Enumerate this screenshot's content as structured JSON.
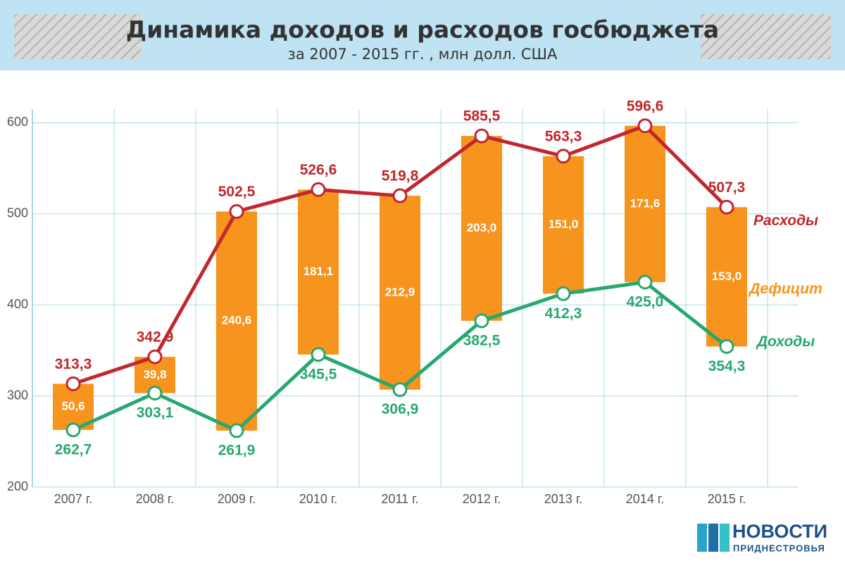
{
  "chart_data": {
    "type": "line",
    "title": "Динамика доходов и расходов госбюджета",
    "subtitle": "за 2007 - 2015 гг. , млн долл. США",
    "categories": [
      "2007 г.",
      "2008 г.",
      "2009 г.",
      "2010 г.",
      "2011 г.",
      "2012 г.",
      "2013 г.",
      "2014 г.",
      "2015 г."
    ],
    "ylim": [
      200,
      615
    ],
    "yticks": [
      200,
      300,
      400,
      500,
      600
    ],
    "grid": true,
    "series": [
      {
        "name": "Расходы",
        "type": "line",
        "color": "#c1272d",
        "values": [
          313.3,
          342.9,
          502.5,
          526.6,
          519.8,
          585.5,
          563.3,
          596.6,
          507.3
        ],
        "value_labels": [
          "313,3",
          "342,9",
          "502,5",
          "526,6",
          "519,8",
          "585,5",
          "563,3",
          "596,6",
          "507,3"
        ]
      },
      {
        "name": "Доходы",
        "type": "line",
        "color": "#27a870",
        "values": [
          262.7,
          303.1,
          261.9,
          345.5,
          306.9,
          382.5,
          412.3,
          425.0,
          354.3
        ],
        "value_labels": [
          "262,7",
          "303,1",
          "261,9",
          "345,5",
          "306,9",
          "382,5",
          "412,3",
          "425,0",
          "354,3"
        ]
      },
      {
        "name": "Дефицит",
        "type": "bar",
        "color": "#f7941d",
        "values": [
          50.6,
          39.8,
          240.6,
          181.1,
          212.9,
          203.0,
          151.0,
          171.6,
          153.0
        ],
        "value_labels": [
          "50,6",
          "39,8",
          "240,6",
          "181,1",
          "212,9",
          "203,0",
          "151,0",
          "171,6",
          "153,0"
        ]
      }
    ]
  },
  "logo": {
    "name": "НОВОСТИ",
    "tagline": "ПРИДНЕСТРОВЬЯ"
  }
}
